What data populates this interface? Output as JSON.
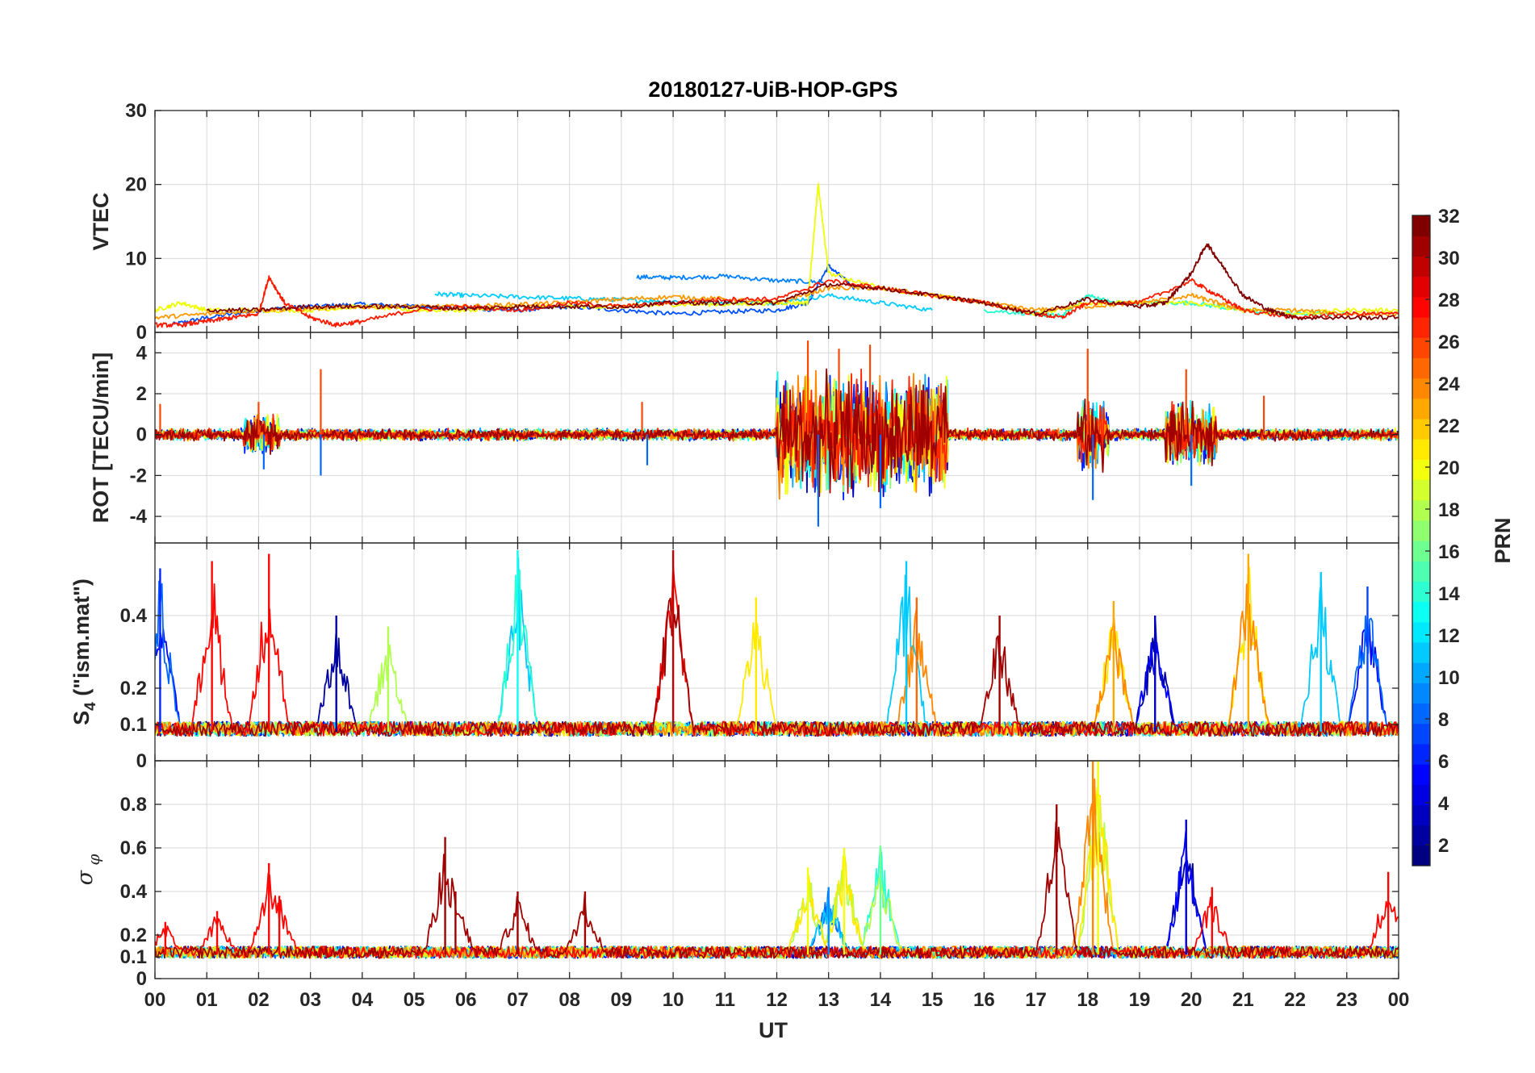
{
  "figure": {
    "title": "20180127-UiB-HOP-GPS",
    "xlabel": "UT",
    "x_ticks": [
      "00",
      "01",
      "02",
      "03",
      "04",
      "05",
      "06",
      "07",
      "08",
      "09",
      "10",
      "11",
      "12",
      "13",
      "14",
      "15",
      "16",
      "17",
      "18",
      "19",
      "20",
      "21",
      "22",
      "23",
      "00"
    ]
  },
  "colorbar": {
    "label": "PRN",
    "ticks": [
      "2",
      "4",
      "6",
      "8",
      "10",
      "12",
      "14",
      "16",
      "18",
      "20",
      "22",
      "24",
      "26",
      "28",
      "30",
      "32"
    ],
    "colormap": "jet",
    "range": [
      1,
      32
    ]
  },
  "chart_data": [
    {
      "type": "line",
      "panel": "vtec",
      "ylabel": "VTEC",
      "ylim": [
        0,
        30
      ],
      "y_ticks": [
        "0",
        "10",
        "20",
        "30"
      ],
      "xlim_hours": [
        0,
        24
      ],
      "grid": true,
      "series": [
        {
          "prn": 5,
          "color": "#0050ff",
          "x": [
            0.3,
            1,
            2,
            3,
            4,
            5,
            6,
            7,
            8,
            9,
            10,
            11,
            12,
            12.6,
            13,
            13.5
          ],
          "y": [
            1,
            2,
            3,
            3.5,
            3.8,
            3.5,
            3.2,
            3,
            3.5,
            3,
            2.5,
            2.8,
            3,
            4,
            9,
            6
          ]
        },
        {
          "prn": 8,
          "color": "#0080ff",
          "x": [
            9.3,
            10,
            11,
            12,
            12.9
          ],
          "y": [
            7.5,
            7.4,
            7.6,
            7.0,
            6.8
          ]
        },
        {
          "prn": 12,
          "color": "#00ccff",
          "x": [
            5.4,
            6,
            7,
            8,
            9,
            10,
            11,
            12,
            13,
            14,
            15
          ],
          "y": [
            5.2,
            5,
            4.8,
            4.6,
            4.4,
            4.2,
            4,
            4,
            5,
            4,
            3
          ]
        },
        {
          "prn": 16,
          "color": "#22ffcc",
          "x": [
            16,
            17,
            17.5,
            18,
            18.5,
            19,
            20,
            21,
            22,
            23
          ],
          "y": [
            3,
            2.5,
            2.2,
            5,
            4,
            4,
            4,
            3,
            2.5,
            2.5
          ]
        },
        {
          "prn": 20,
          "color": "#eeff00",
          "x": [
            0,
            0.5,
            1,
            2,
            3,
            4,
            5,
            6,
            7,
            8,
            9,
            10,
            11,
            12,
            12.6,
            12.8,
            13,
            14,
            15,
            16,
            17,
            18,
            19,
            20,
            21,
            22,
            23,
            24
          ],
          "y": [
            3,
            4,
            3,
            3,
            3,
            3.5,
            3,
            3,
            3.5,
            3.5,
            3.5,
            3.8,
            3.8,
            4,
            4,
            20,
            8,
            6,
            5,
            4,
            2.5,
            4,
            4,
            4,
            3,
            2.5,
            3,
            3
          ]
        },
        {
          "prn": 24,
          "color": "#ff9900",
          "x": [
            0,
            1,
            2,
            3,
            4,
            5,
            6,
            7,
            8,
            9,
            10,
            11,
            12,
            13,
            14,
            15,
            16,
            17,
            18,
            19,
            20,
            20.5,
            21,
            22,
            23,
            24
          ],
          "y": [
            2,
            2.5,
            3,
            3.2,
            3.5,
            3.5,
            3.5,
            3.8,
            4,
            4.5,
            4.8,
            4.5,
            4,
            6,
            6,
            5,
            4,
            3,
            3.5,
            4,
            5,
            4,
            3,
            3,
            2.5,
            2.5
          ]
        },
        {
          "prn": 28,
          "color": "#ff1a00",
          "x": [
            0,
            0.5,
            1,
            1.5,
            2,
            2.2,
            2.5,
            3,
            3.5,
            4,
            5,
            6,
            7,
            8,
            9,
            10,
            11,
            12,
            13,
            14,
            15,
            16,
            17,
            17.5,
            18,
            19,
            20,
            20.5,
            21,
            22,
            23,
            24
          ],
          "y": [
            1,
            1,
            1.5,
            2,
            2.5,
            7.5,
            4,
            2,
            1,
            1.5,
            3,
            3.5,
            3,
            4,
            3.5,
            4,
            4.5,
            4.5,
            7,
            6,
            5,
            4,
            2.5,
            2,
            4,
            4,
            7,
            5,
            3,
            2,
            2.5,
            2.5
          ]
        },
        {
          "prn": 31,
          "color": "#800000",
          "x": [
            1,
            2,
            3,
            4,
            5,
            6,
            7,
            8,
            9,
            10,
            11,
            12,
            13,
            14,
            15,
            16,
            17,
            18,
            19,
            19.5,
            20,
            20.3,
            20.6,
            21,
            21.5,
            22,
            23,
            24
          ],
          "y": [
            3,
            3,
            3.5,
            3.5,
            3.5,
            3.2,
            3.5,
            3.5,
            3.5,
            4,
            4,
            4,
            6.5,
            6,
            5,
            4,
            2.5,
            4.5,
            3.5,
            4,
            8,
            12,
            9,
            5,
            3,
            2,
            2,
            2
          ]
        }
      ]
    },
    {
      "type": "line",
      "panel": "rot",
      "ylabel": "ROT [TECU/min]",
      "ylim": [
        -5.3,
        5
      ],
      "y_ticks": [
        "-4",
        "-2",
        "0",
        "2",
        "4"
      ],
      "xlim_hours": [
        0,
        24
      ],
      "grid": true,
      "spike_events": [
        {
          "hour": 0.1,
          "value": 1.5
        },
        {
          "hour": 2.0,
          "value": 1.6
        },
        {
          "hour": 2.1,
          "value": -1.7
        },
        {
          "hour": 3.2,
          "value": 3.2
        },
        {
          "hour": 3.2,
          "value": -2.0
        },
        {
          "hour": 9.4,
          "value": 1.6
        },
        {
          "hour": 9.5,
          "value": -1.5
        },
        {
          "hour": 12.6,
          "value": 4.6
        },
        {
          "hour": 12.8,
          "value": -4.5
        },
        {
          "hour": 13.2,
          "value": 4.2
        },
        {
          "hour": 13.8,
          "value": 4.4
        },
        {
          "hour": 14.0,
          "value": -3.6
        },
        {
          "hour": 18.0,
          "value": 4.2
        },
        {
          "hour": 18.1,
          "value": -3.2
        },
        {
          "hour": 19.9,
          "value": 3.2
        },
        {
          "hour": 20.0,
          "value": -2.5
        },
        {
          "hour": 21.4,
          "value": 1.9
        }
      ],
      "activity_windows": [
        {
          "start": 12.0,
          "end": 15.3,
          "amplitude": 2.5
        },
        {
          "start": 17.8,
          "end": 18.4,
          "amplitude": 1.5
        },
        {
          "start": 19.5,
          "end": 20.5,
          "amplitude": 1.3
        },
        {
          "start": 1.7,
          "end": 2.4,
          "amplitude": 0.8
        }
      ],
      "baseline_amplitude": 0.25
    },
    {
      "type": "line",
      "panel": "s4",
      "ylabel": "S4 (\"ism.mat\")",
      "ylabel_main": "S",
      "ylabel_sub": "4",
      "ylabel_rest": "(\"ism.mat\")",
      "ylim": [
        0,
        0.6
      ],
      "y_ticks": [
        "0",
        "0.1",
        "0.2",
        "0.4"
      ],
      "xlim_hours": [
        0,
        24
      ],
      "grid": true,
      "baseline": 0.08,
      "peaks": [
        {
          "hour": 0.1,
          "value": 0.53,
          "prn": 6
        },
        {
          "hour": 1.1,
          "value": 0.55,
          "prn": 28
        },
        {
          "hour": 2.2,
          "value": 0.57,
          "prn": 28
        },
        {
          "hour": 3.5,
          "value": 0.4,
          "prn": 2
        },
        {
          "hour": 4.5,
          "value": 0.37,
          "prn": 18
        },
        {
          "hour": 7.0,
          "value": 0.58,
          "prn": 13
        },
        {
          "hour": 10.0,
          "value": 0.58,
          "prn": 30
        },
        {
          "hour": 11.6,
          "value": 0.45,
          "prn": 21
        },
        {
          "hour": 14.5,
          "value": 0.55,
          "prn": 11
        },
        {
          "hour": 14.7,
          "value": 0.45,
          "prn": 25
        },
        {
          "hour": 16.3,
          "value": 0.4,
          "prn": 31
        },
        {
          "hour": 18.5,
          "value": 0.44,
          "prn": 23
        },
        {
          "hour": 19.3,
          "value": 0.4,
          "prn": 3
        },
        {
          "hour": 21.1,
          "value": 0.57,
          "prn": 23
        },
        {
          "hour": 22.5,
          "value": 0.52,
          "prn": 11
        },
        {
          "hour": 23.4,
          "value": 0.48,
          "prn": 7
        }
      ]
    },
    {
      "type": "line",
      "panel": "sigma_phi",
      "ylabel": "σ_φ",
      "ylim": [
        0,
        1
      ],
      "y_ticks": [
        "0",
        "0.1",
        "0.2",
        "0.4",
        "0.6",
        "0.8"
      ],
      "xlim_hours": [
        0,
        24
      ],
      "grid": true,
      "baseline": 0.11,
      "peaks": [
        {
          "hour": 0.2,
          "value": 0.26,
          "prn": 28
        },
        {
          "hour": 1.2,
          "value": 0.31,
          "prn": 28
        },
        {
          "hour": 2.2,
          "value": 0.53,
          "prn": 28
        },
        {
          "hour": 2.4,
          "value": 0.38,
          "prn": 28
        },
        {
          "hour": 5.6,
          "value": 0.65,
          "prn": 31
        },
        {
          "hour": 5.8,
          "value": 0.4,
          "prn": 31
        },
        {
          "hour": 7.0,
          "value": 0.4,
          "prn": 31
        },
        {
          "hour": 8.3,
          "value": 0.4,
          "prn": 31
        },
        {
          "hour": 12.6,
          "value": 0.51,
          "prn": 20
        },
        {
          "hour": 13.0,
          "value": 0.42,
          "prn": 9
        },
        {
          "hour": 13.3,
          "value": 0.6,
          "prn": 20
        },
        {
          "hour": 14.0,
          "value": 0.61,
          "prn": 16
        },
        {
          "hour": 17.4,
          "value": 0.8,
          "prn": 31
        },
        {
          "hour": 18.1,
          "value": 1.0,
          "prn": 24
        },
        {
          "hour": 18.2,
          "value": 1.0,
          "prn": 20
        },
        {
          "hour": 19.9,
          "value": 0.73,
          "prn": 4
        },
        {
          "hour": 20.4,
          "value": 0.42,
          "prn": 28
        },
        {
          "hour": 23.8,
          "value": 0.49,
          "prn": 28
        }
      ]
    }
  ]
}
